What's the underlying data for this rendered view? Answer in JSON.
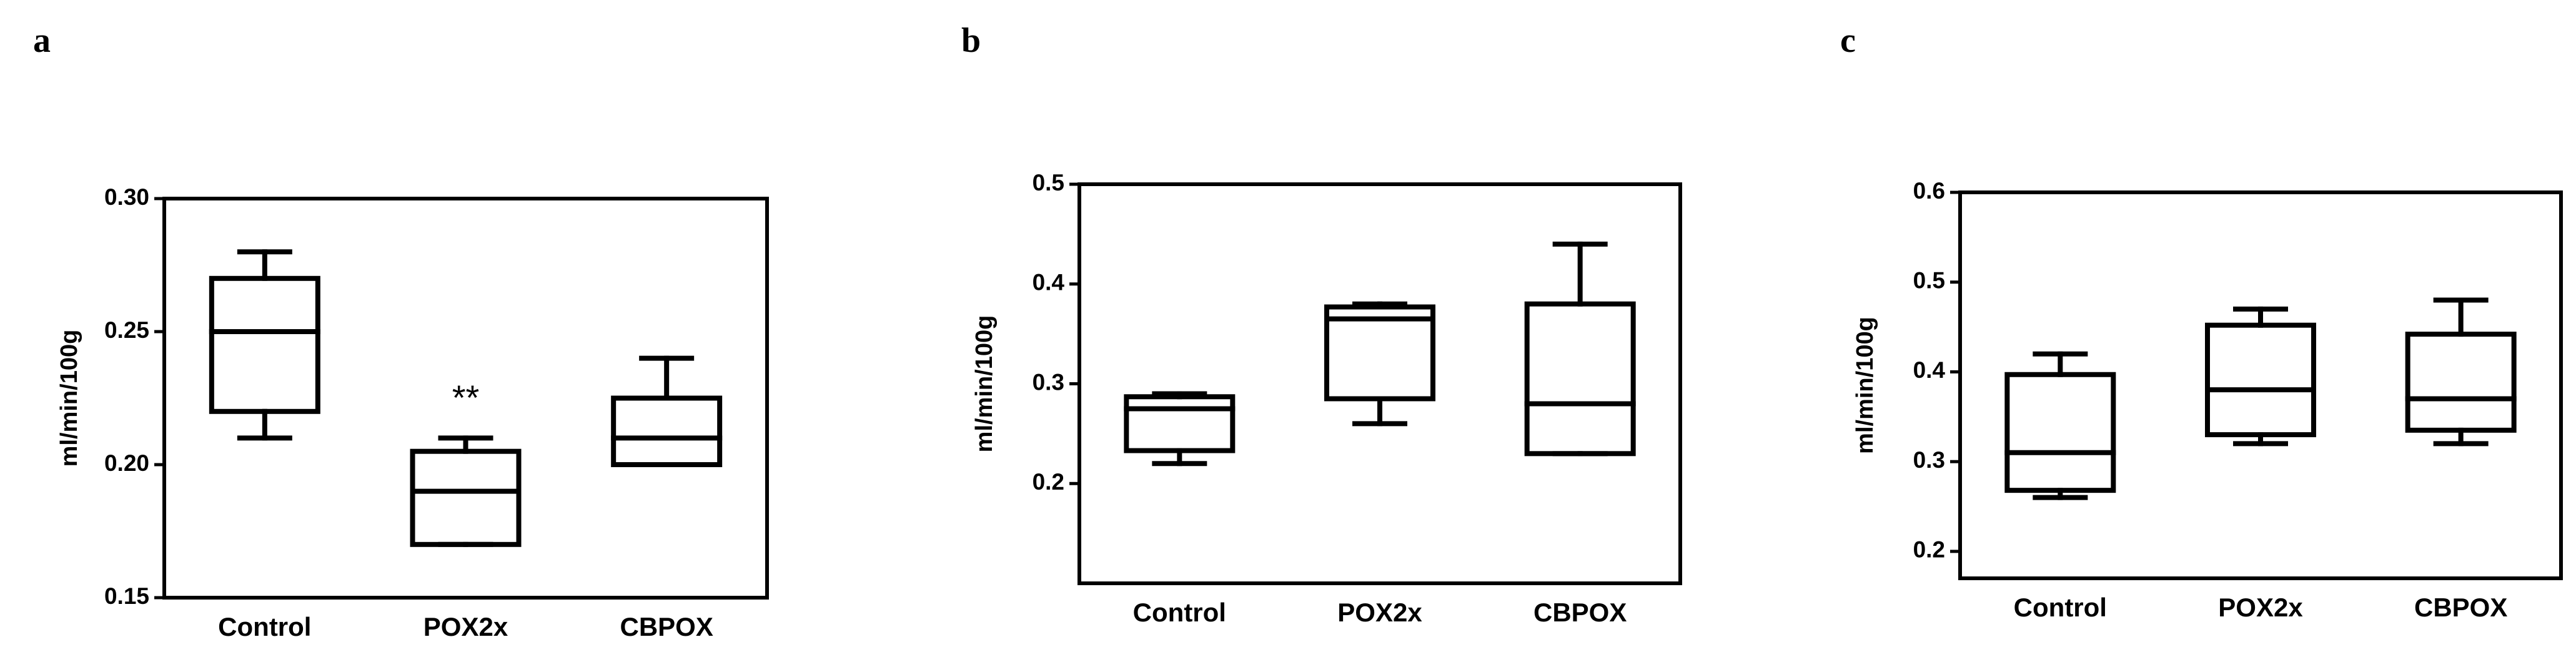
{
  "chart_data": [
    {
      "type": "box",
      "label": "a",
      "ylabel": "ml/min/100g",
      "categories": [
        "Control",
        "POX2x",
        "CBPOX"
      ],
      "boxes": [
        {
          "min": 0.21,
          "q1": 0.22,
          "median": 0.25,
          "q3": 0.27,
          "max": 0.28
        },
        {
          "min": 0.17,
          "q1": 0.17,
          "median": 0.19,
          "q3": 0.205,
          "max": 0.21
        },
        {
          "min": 0.2,
          "q1": 0.2,
          "median": 0.21,
          "q3": 0.225,
          "max": 0.24
        }
      ],
      "annotations": [
        {
          "text": "**",
          "x": "POX2x"
        }
      ],
      "color": "#000000",
      "ylim": [
        0.15,
        0.3
      ],
      "yticks": [
        0.15,
        {
          "value": 0.2,
          "label": "0.20"
        },
        0.25,
        {
          "value": 0.3,
          "label": "0.30"
        }
      ]
    },
    {
      "type": "box",
      "label": "b",
      "ylabel": "ml/min/100g",
      "categories": [
        "Control",
        "POX2x",
        "CBPOX"
      ],
      "boxes": [
        {
          "min": 0.22,
          "q1": 0.233,
          "median": 0.275,
          "q3": 0.287,
          "max": 0.29
        },
        {
          "min": 0.26,
          "q1": 0.285,
          "median": 0.365,
          "q3": 0.377,
          "max": 0.38
        },
        {
          "min": 0.23,
          "q1": 0.23,
          "median": 0.28,
          "q3": 0.38,
          "max": 0.44
        }
      ],
      "color": "#000000",
      "ylim": [
        0.1,
        0.5
      ],
      "yticks": [
        0.2,
        0.3,
        0.4,
        0.5
      ]
    },
    {
      "type": "box",
      "label": "c",
      "ylabel": "ml/min/100g",
      "categories": [
        "Control",
        "POX2x",
        "CBPOX"
      ],
      "boxes": [
        {
          "min": 0.26,
          "q1": 0.268,
          "median": 0.31,
          "q3": 0.397,
          "max": 0.42
        },
        {
          "min": 0.32,
          "q1": 0.33,
          "median": 0.38,
          "q3": 0.452,
          "max": 0.47
        },
        {
          "min": 0.32,
          "q1": 0.335,
          "median": 0.37,
          "q3": 0.442,
          "max": 0.48
        }
      ],
      "color": "#000000",
      "ylim": [
        0.17,
        0.6
      ],
      "yticks": [
        0.2,
        0.3,
        0.4,
        0.5,
        0.6
      ]
    }
  ]
}
